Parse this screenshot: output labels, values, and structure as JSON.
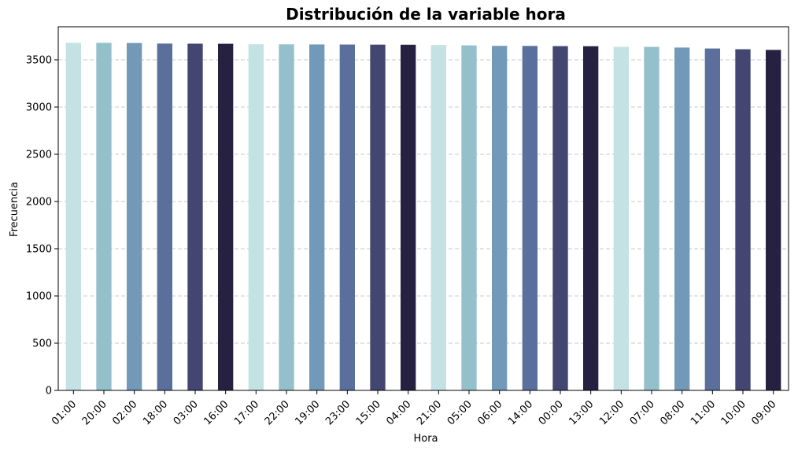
{
  "chart_data": {
    "type": "bar",
    "title": "Distribución de la variable hora",
    "xlabel": "Hora",
    "ylabel": "Frecuencia",
    "ylim": [
      0,
      3850
    ],
    "yticks": [
      0,
      500,
      1000,
      1500,
      2000,
      2500,
      3000,
      3500
    ],
    "grid": "y-dashed",
    "categories": [
      "01:00",
      "20:00",
      "02:00",
      "18:00",
      "03:00",
      "16:00",
      "17:00",
      "22:00",
      "19:00",
      "23:00",
      "15:00",
      "04:00",
      "21:00",
      "05:00",
      "06:00",
      "14:00",
      "00:00",
      "13:00",
      "12:00",
      "07:00",
      "08:00",
      "11:00",
      "10:00",
      "09:00"
    ],
    "values": [
      3680,
      3680,
      3678,
      3672,
      3671,
      3670,
      3665,
      3664,
      3663,
      3662,
      3661,
      3660,
      3657,
      3653,
      3648,
      3647,
      3645,
      3644,
      3638,
      3637,
      3630,
      3620,
      3612,
      3605
    ],
    "palette": [
      "#c4e2e3",
      "#94c0cc",
      "#7299b8",
      "#5a6f9c",
      "#424671",
      "#262140"
    ]
  }
}
